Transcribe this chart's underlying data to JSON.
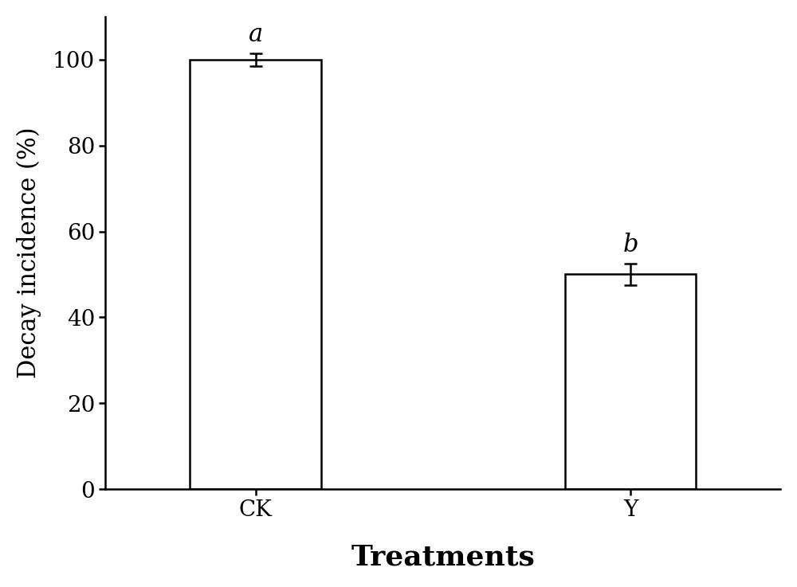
{
  "categories": [
    "CK",
    "Y"
  ],
  "values": [
    100,
    50
  ],
  "errors": [
    1.5,
    2.5
  ],
  "bar_color": "#ffffff",
  "bar_edgecolor": "#000000",
  "bar_width": 0.35,
  "bar_positions": [
    1,
    2
  ],
  "significance_labels": [
    "a",
    "b"
  ],
  "ylabel": "Decay incidence (%)",
  "xlabel": "Treatments",
  "ylim": [
    0,
    110
  ],
  "yticks": [
    0,
    20,
    40,
    60,
    80,
    100
  ],
  "tick_fontsize": 20,
  "sig_fontsize": 22,
  "xlabel_fontsize": 26,
  "ylabel_fontsize": 22,
  "background_color": "#ffffff",
  "linewidth": 1.8
}
